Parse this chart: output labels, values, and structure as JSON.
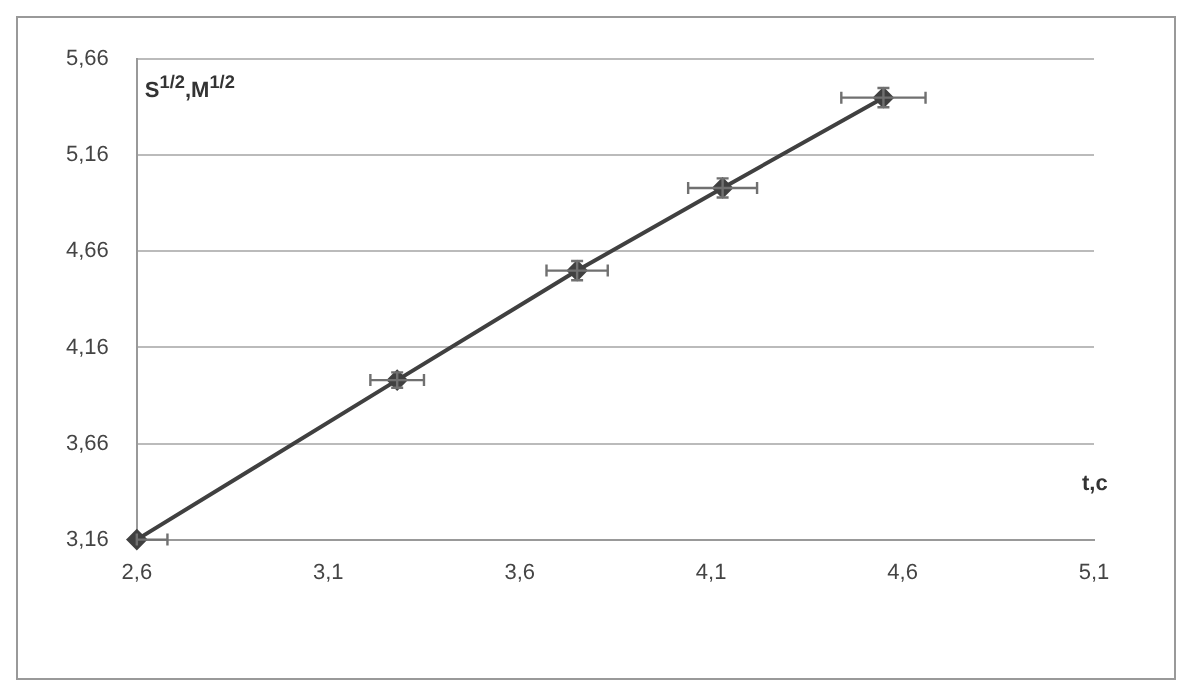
{
  "chart_data": {
    "type": "line",
    "xlabel": "t,c",
    "ylabel": "S$^{1/2}$,M$^{1/2}$",
    "x": [
      2.6,
      3.28,
      3.75,
      4.13,
      4.55
    ],
    "series": [
      {
        "color": "#404040",
        "values": [
          3.16,
          3.99,
          4.56,
          4.99,
          5.46
        ],
        "errors": [
          null,
          0.04,
          0.05,
          0.05,
          0.05
        ],
        "xerrors": [
          [
            2.6,
            2.68
          ],
          0.07,
          0.08,
          0.09,
          0.11
        ]
      }
    ],
    "xlim": [
      2.6,
      5.1
    ],
    "ylim": [
      3.16,
      5.66
    ],
    "xticks": [
      {
        "value": 2.6,
        "label": "2,6"
      },
      {
        "value": 3.1,
        "label": "3,1"
      },
      {
        "value": 3.6,
        "label": "3,6"
      },
      {
        "value": 4.1,
        "label": "4,1"
      },
      {
        "value": 4.6,
        "label": "4,6"
      },
      {
        "value": 5.1,
        "label": "5,1"
      }
    ],
    "yticks": [
      {
        "value": 3.16,
        "label": "3,16"
      },
      {
        "value": 3.66,
        "label": "3,66"
      },
      {
        "value": 4.16,
        "label": "4,16"
      },
      {
        "value": 4.66,
        "label": "4,66"
      },
      {
        "value": 5.16,
        "label": "5,16"
      },
      {
        "value": 5.66,
        "label": "5,66"
      }
    ],
    "grid": "y",
    "marker": "diamond",
    "line_style": "solid",
    "legend": false
  }
}
